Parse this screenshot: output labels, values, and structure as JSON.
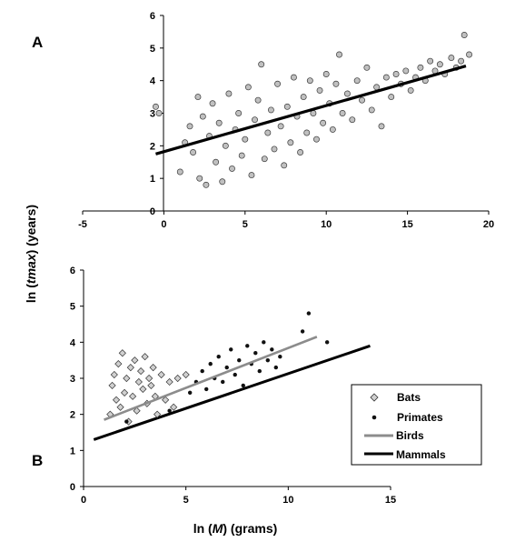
{
  "colors": {
    "mammals_line": "#000000",
    "birds_line": "#8c8c8c",
    "scatter_fill": "#c0c0c0",
    "scatter_stroke": "#3a3a3a",
    "bats_fill": "#d0d0d0",
    "primates_fill": "#111111"
  },
  "chart_data": [
    {
      "panel": "A",
      "type": "scatter",
      "xlim": [
        -5,
        20
      ],
      "ylim": [
        0,
        6
      ],
      "xticks": [
        "-5",
        "0",
        "5",
        "10",
        "15",
        "20"
      ],
      "yticks": [
        "0",
        "1",
        "2",
        "3",
        "4",
        "5",
        "6"
      ],
      "series": [
        {
          "type": "scatter",
          "marker": "circle",
          "points": [
            [
              -0.5,
              3.2
            ],
            [
              -0.3,
              3.0
            ],
            [
              1.0,
              1.2
            ],
            [
              1.3,
              2.1
            ],
            [
              1.6,
              2.6
            ],
            [
              1.8,
              1.8
            ],
            [
              2.1,
              3.5
            ],
            [
              2.2,
              1.0
            ],
            [
              2.4,
              2.9
            ],
            [
              2.6,
              0.8
            ],
            [
              2.8,
              2.3
            ],
            [
              3.0,
              3.3
            ],
            [
              3.2,
              1.5
            ],
            [
              3.4,
              2.7
            ],
            [
              3.6,
              0.9
            ],
            [
              3.8,
              2.0
            ],
            [
              4.0,
              3.6
            ],
            [
              4.2,
              1.3
            ],
            [
              4.4,
              2.5
            ],
            [
              4.6,
              3.0
            ],
            [
              4.8,
              1.7
            ],
            [
              5.0,
              2.2
            ],
            [
              5.2,
              3.8
            ],
            [
              5.4,
              1.1
            ],
            [
              5.6,
              2.8
            ],
            [
              5.8,
              3.4
            ],
            [
              6.0,
              4.5
            ],
            [
              6.2,
              1.6
            ],
            [
              6.4,
              2.4
            ],
            [
              6.6,
              3.1
            ],
            [
              6.8,
              1.9
            ],
            [
              7.0,
              3.9
            ],
            [
              7.2,
              2.6
            ],
            [
              7.4,
              1.4
            ],
            [
              7.6,
              3.2
            ],
            [
              7.8,
              2.1
            ],
            [
              8.0,
              4.1
            ],
            [
              8.2,
              2.9
            ],
            [
              8.4,
              1.8
            ],
            [
              8.6,
              3.5
            ],
            [
              8.8,
              2.4
            ],
            [
              9.0,
              4.0
            ],
            [
              9.2,
              3.0
            ],
            [
              9.4,
              2.2
            ],
            [
              9.6,
              3.7
            ],
            [
              9.8,
              2.7
            ],
            [
              10.0,
              4.2
            ],
            [
              10.2,
              3.3
            ],
            [
              10.4,
              2.5
            ],
            [
              10.6,
              3.9
            ],
            [
              10.8,
              4.8
            ],
            [
              11.0,
              3.0
            ],
            [
              11.3,
              3.6
            ],
            [
              11.6,
              2.8
            ],
            [
              11.9,
              4.0
            ],
            [
              12.2,
              3.4
            ],
            [
              12.5,
              4.4
            ],
            [
              12.8,
              3.1
            ],
            [
              13.1,
              3.8
            ],
            [
              13.4,
              2.6
            ],
            [
              13.7,
              4.1
            ],
            [
              14.0,
              3.5
            ],
            [
              14.3,
              4.2
            ],
            [
              14.6,
              3.9
            ],
            [
              14.9,
              4.3
            ],
            [
              15.2,
              3.7
            ],
            [
              15.5,
              4.1
            ],
            [
              15.8,
              4.4
            ],
            [
              16.1,
              4.0
            ],
            [
              16.4,
              4.6
            ],
            [
              16.7,
              4.3
            ],
            [
              17.0,
              4.5
            ],
            [
              17.3,
              4.2
            ],
            [
              17.7,
              4.7
            ],
            [
              18.0,
              4.4
            ],
            [
              18.3,
              4.6
            ],
            [
              18.5,
              5.4
            ],
            [
              18.8,
              4.8
            ]
          ]
        },
        {
          "type": "line",
          "points": [
            [
              -0.5,
              1.75
            ],
            [
              18.6,
              4.45
            ]
          ]
        }
      ]
    },
    {
      "panel": "B",
      "type": "scatter",
      "xlim": [
        0,
        15
      ],
      "ylim": [
        0,
        6
      ],
      "xticks": [
        "0",
        "5",
        "10",
        "15"
      ],
      "yticks": [
        "0",
        "1",
        "2",
        "3",
        "4",
        "5",
        "6"
      ],
      "series": [
        {
          "name": "Bats",
          "type": "scatter",
          "marker": "diamond",
          "points": [
            [
              1.3,
              2.0
            ],
            [
              1.4,
              2.8
            ],
            [
              1.5,
              3.1
            ],
            [
              1.6,
              2.4
            ],
            [
              1.7,
              3.4
            ],
            [
              1.8,
              2.2
            ],
            [
              1.9,
              3.7
            ],
            [
              2.0,
              2.6
            ],
            [
              2.1,
              3.0
            ],
            [
              2.2,
              1.8
            ],
            [
              2.3,
              3.3
            ],
            [
              2.4,
              2.5
            ],
            [
              2.5,
              3.5
            ],
            [
              2.6,
              2.1
            ],
            [
              2.7,
              2.9
            ],
            [
              2.8,
              3.2
            ],
            [
              2.9,
              2.7
            ],
            [
              3.0,
              3.6
            ],
            [
              3.1,
              2.3
            ],
            [
              3.2,
              3.0
            ],
            [
              3.3,
              2.8
            ],
            [
              3.4,
              3.3
            ],
            [
              3.5,
              2.5
            ],
            [
              3.6,
              2.0
            ],
            [
              3.8,
              3.1
            ],
            [
              4.0,
              2.4
            ],
            [
              4.2,
              2.9
            ],
            [
              4.4,
              2.2
            ],
            [
              4.6,
              3.0
            ],
            [
              5.0,
              3.1
            ]
          ]
        },
        {
          "name": "Primates",
          "type": "scatter",
          "marker": "dot",
          "points": [
            [
              2.1,
              1.8
            ],
            [
              4.2,
              2.1
            ],
            [
              5.2,
              2.6
            ],
            [
              5.5,
              2.9
            ],
            [
              5.8,
              3.2
            ],
            [
              6.0,
              2.7
            ],
            [
              6.2,
              3.4
            ],
            [
              6.4,
              3.0
            ],
            [
              6.6,
              3.6
            ],
            [
              6.8,
              2.9
            ],
            [
              7.0,
              3.3
            ],
            [
              7.2,
              3.8
            ],
            [
              7.4,
              3.1
            ],
            [
              7.6,
              3.5
            ],
            [
              7.8,
              2.8
            ],
            [
              8.0,
              3.9
            ],
            [
              8.2,
              3.4
            ],
            [
              8.4,
              3.7
            ],
            [
              8.6,
              3.2
            ],
            [
              8.8,
              4.0
            ],
            [
              9.0,
              3.5
            ],
            [
              9.2,
              3.8
            ],
            [
              9.4,
              3.3
            ],
            [
              9.6,
              3.6
            ],
            [
              10.7,
              4.3
            ],
            [
              11.0,
              4.8
            ],
            [
              11.9,
              4.0
            ]
          ]
        },
        {
          "name": "Birds",
          "type": "line",
          "points": [
            [
              1.0,
              1.85
            ],
            [
              11.4,
              4.15
            ]
          ]
        },
        {
          "name": "Mammals",
          "type": "line",
          "points": [
            [
              0.5,
              1.3
            ],
            [
              14.0,
              3.9
            ]
          ]
        }
      ]
    }
  ],
  "axes": {
    "ylabel_prefix": "ln (",
    "ylabel_var": "tmax",
    "ylabel_suffix": ") (years)",
    "xlabel_prefix": "ln (",
    "xlabel_var": "M",
    "xlabel_suffix": ") (grams)"
  }
}
